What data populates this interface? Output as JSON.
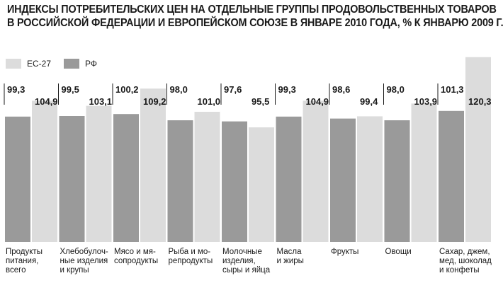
{
  "chart_data": {
    "type": "bar",
    "title_lines": [
      "ИНДЕКСЫ ПОТРЕБИТЕЛЬСКИХ ЦЕН НА ОТДЕЛЬНЫЕ ГРУППЫ ПРОДОВОЛЬСТВЕННЫХ ТОВАРОВ",
      "В РОССИЙСКОЙ ФЕДЕРАЦИИ И ЕВРОПЕЙСКОМ СОЮЗЕ В ЯНВАРЕ 2010 ГОДА, % К ЯНВАРЮ 2009 Г."
    ],
    "categories": [
      "Продукты\nпитания,\nвсего",
      "Хлебобулоч-\nные изделия\nи крупы",
      "Мясо и мя-\nсопродукты",
      "Рыба и мо-\nрепродукты",
      "Молочные\nизделия,\nсыры и яйца",
      "Масла\nи жиры",
      "Фрукты",
      "Овощи",
      "Сахар, джем,\nмед, шоколад\nи конфеты"
    ],
    "series": [
      {
        "name": "РФ",
        "color": "#9a9a9a",
        "values": [
          99.3,
          99.5,
          100.2,
          98.0,
          97.6,
          99.3,
          98.6,
          98.0,
          101.3
        ],
        "labels": [
          "99,3",
          "99,5",
          "100,2",
          "98,0",
          "97,6",
          "99,3",
          "98,6",
          "98,0",
          "101,3"
        ]
      },
      {
        "name": "ЕС-27",
        "color": "#dcdcdc",
        "values": [
          104.9,
          103.1,
          109.2,
          101.0,
          95.5,
          104.9,
          99.4,
          103.9,
          120.3
        ],
        "labels": [
          "104,9",
          "103,1",
          "109,2",
          "101,0",
          "95,5",
          "104,9",
          "99,4",
          "103,9",
          "120,3"
        ]
      }
    ],
    "legend": [
      {
        "label": "ЕС-27",
        "color": "#dcdcdc"
      },
      {
        "label": "РФ",
        "color": "#9a9a9a"
      }
    ],
    "legend_position": "top-left",
    "grid": false
  }
}
